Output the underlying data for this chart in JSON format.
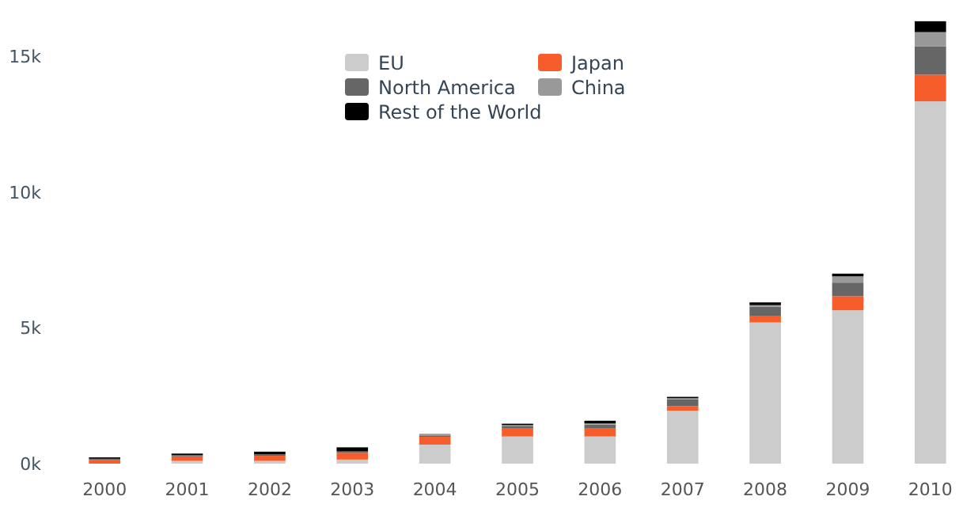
{
  "chart_data": {
    "type": "bar",
    "stacked": true,
    "categories": [
      "2000",
      "2001",
      "2002",
      "2003",
      "2004",
      "2005",
      "2006",
      "2007",
      "2008",
      "2009",
      "2010"
    ],
    "series": [
      {
        "name": "EU",
        "color": "#cccccc",
        "values": [
          null,
          100,
          100,
          150,
          700,
          1000,
          1000,
          1950,
          5200,
          5650,
          13350
        ]
      },
      {
        "name": "Japan",
        "color": "#f65d2a",
        "values": [
          130,
          170,
          190,
          250,
          290,
          290,
          290,
          170,
          230,
          520,
          980
        ]
      },
      {
        "name": "North America",
        "color": "#666666",
        "values": [
          50,
          50,
          50,
          50,
          50,
          100,
          150,
          250,
          350,
          500,
          1050
        ]
      },
      {
        "name": "China",
        "color": "#999999",
        "values": [
          0,
          0,
          0,
          0,
          60,
          30,
          40,
          40,
          60,
          230,
          520
        ]
      },
      {
        "name": "Rest of the World",
        "color": "#000000",
        "values": [
          50,
          50,
          100,
          150,
          0,
          50,
          100,
          50,
          100,
          100,
          400
        ]
      }
    ],
    "ylim": [
      0,
      16500
    ],
    "yticks": [
      {
        "value": 0,
        "label": "0k"
      },
      {
        "value": 5000,
        "label": "5k"
      },
      {
        "value": 10000,
        "label": "10k"
      },
      {
        "value": 15000,
        "label": "15k"
      }
    ],
    "grid": false,
    "legend": "top"
  }
}
